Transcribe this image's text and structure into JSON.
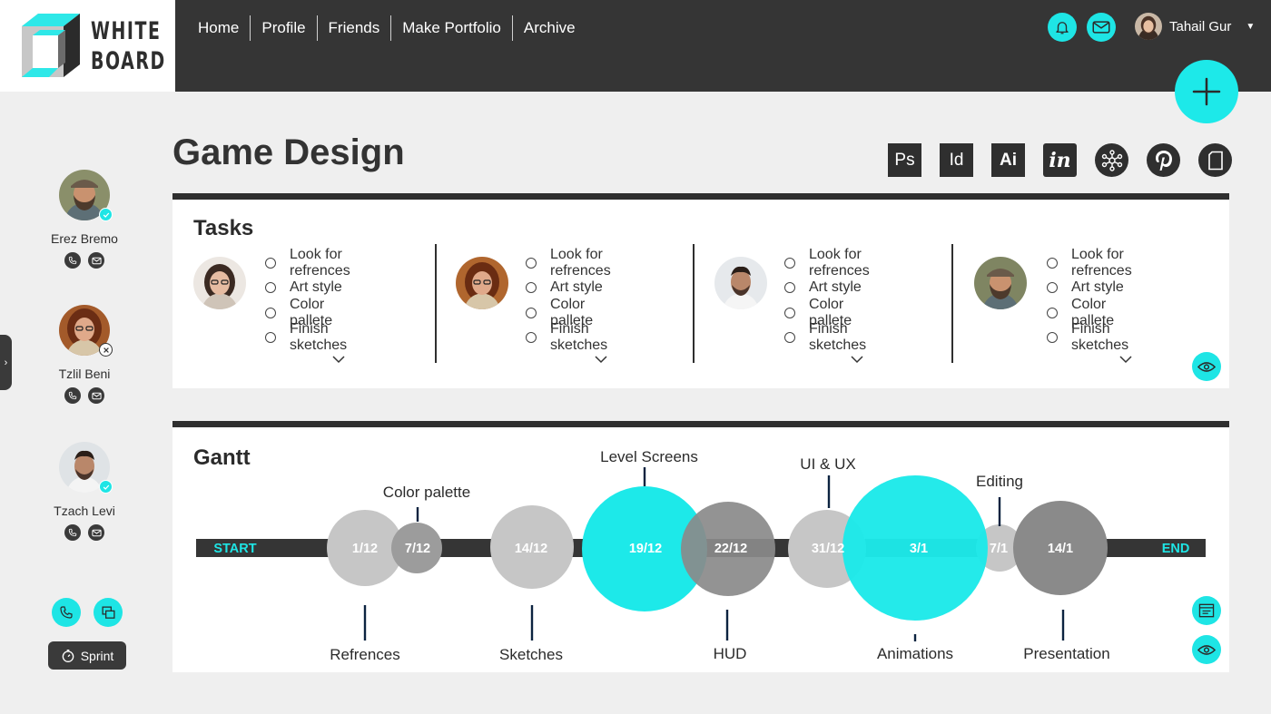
{
  "brand": {
    "line1": "WHITE",
    "line2": "BOARD"
  },
  "nav": [
    "Home",
    "Profile",
    "Friends",
    "Make Portfolio",
    "Archive"
  ],
  "user": {
    "name": "Tahail Gur"
  },
  "colors": {
    "accent": "#1ee5e5",
    "dark": "#353535",
    "background": "#efefef",
    "bubble_light": "#c6c6c6",
    "bubble_mid": "#9c9c9c",
    "bubble_dark": "#8a8a8a"
  },
  "team": [
    {
      "name": "Erez Bremo",
      "status": "available"
    },
    {
      "name": "Tzlil Beni",
      "status": "unavailable"
    },
    {
      "name": "Tzach Levi",
      "status": "available"
    }
  ],
  "sprint_label": "Sprint",
  "page_title": "Game Design",
  "tools": [
    {
      "label": "Ps",
      "icon": "photoshop-icon"
    },
    {
      "label": "Id",
      "icon": "indesign-icon"
    },
    {
      "label": "Ai",
      "icon": "illustrator-icon"
    },
    {
      "label": "in",
      "icon": "invision-icon"
    },
    {
      "label": "",
      "icon": "hub-icon"
    },
    {
      "label": "",
      "icon": "pinterest-icon"
    },
    {
      "label": "",
      "icon": "document-icon"
    }
  ],
  "tasks": {
    "title": "Tasks",
    "columns": [
      {
        "items": [
          "Look for refrences",
          "Art style",
          "Color pallete",
          "Finish sketches"
        ]
      },
      {
        "items": [
          "Look for refrences",
          "Art style",
          "Color pallete",
          "Finish sketches"
        ]
      },
      {
        "items": [
          "Look for refrences",
          "Art style",
          "Color pallete",
          "Finish sketches"
        ]
      },
      {
        "items": [
          "Look for refrences",
          "Art style",
          "Color pallete",
          "Finish sketches"
        ]
      }
    ]
  },
  "gantt": {
    "title": "Gantt",
    "start_label": "START",
    "end_label": "END",
    "dates": [
      "1/12",
      "7/12",
      "14/12",
      "19/12",
      "22/12",
      "31/12",
      "3/1",
      "7/1",
      "14/1"
    ],
    "stages": [
      "Color palette",
      "Level Screens",
      "UI & UX",
      "Editing",
      "Refrences",
      "Sketches",
      "HUD",
      "Animations",
      "Presentation"
    ]
  }
}
